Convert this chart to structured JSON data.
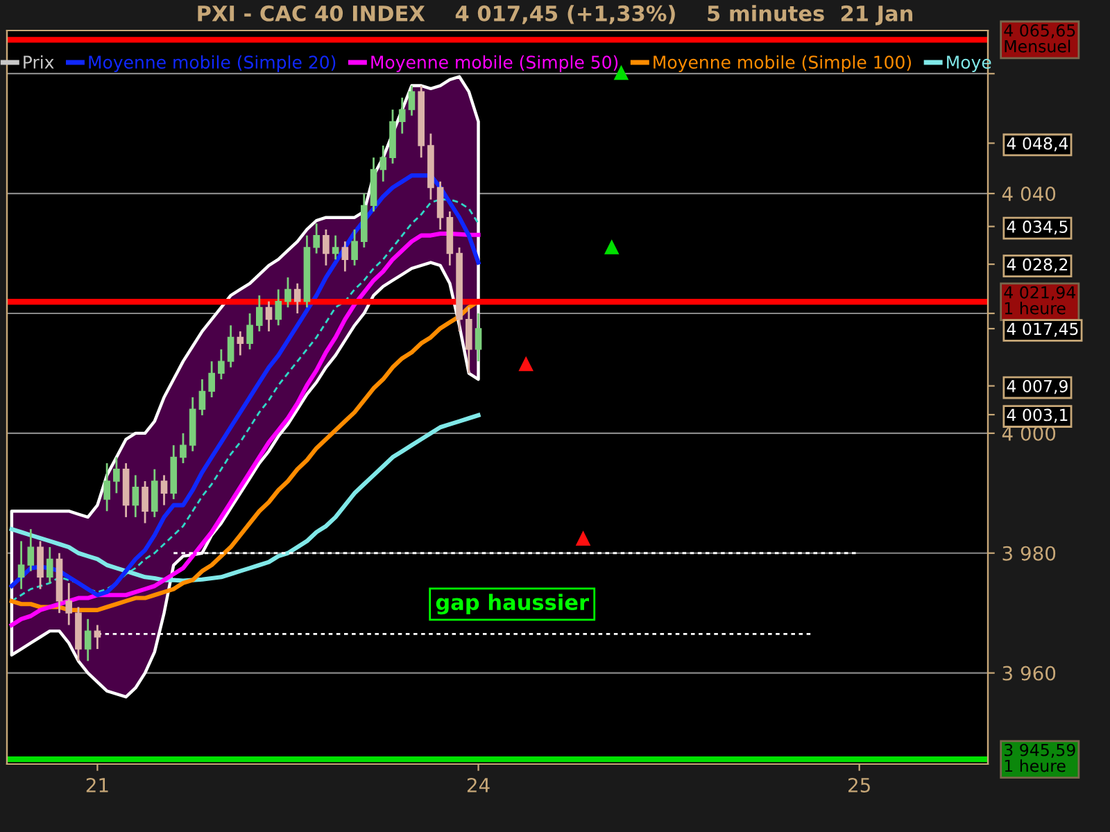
{
  "chart_data": {
    "type": "candlestick",
    "title": "PXI - CAC 40 INDEX    4 017,45 (+1,33%)    5 minutes  21 Jan",
    "categories": [
      null,
      null,
      null,
      null,
      null,
      null,
      null,
      null,
      null,
      "21",
      null,
      null,
      null,
      null,
      null,
      null,
      null,
      null,
      null,
      null,
      null,
      null,
      null,
      null,
      null,
      null,
      null,
      null,
      null,
      null,
      null,
      null,
      null,
      null,
      null,
      null,
      null,
      null,
      null,
      null,
      null,
      null,
      null,
      null,
      null,
      null,
      null,
      null,
      null,
      "24",
      null,
      null,
      null,
      null,
      null,
      null,
      null,
      null,
      null,
      null,
      null,
      null,
      null,
      null,
      null,
      null,
      null,
      null,
      null,
      null,
      null,
      null,
      null,
      null,
      null,
      null,
      null,
      null,
      null,
      null,
      null,
      null,
      null,
      null,
      null,
      null,
      null,
      null,
      null,
      "25",
      null,
      null,
      null,
      null,
      null,
      null,
      null,
      null,
      null,
      null,
      null,
      null,
      null
    ],
    "ylim": [
      3944.8,
      4067.2
    ],
    "yticks": [
      {
        "value": 3960,
        "label": "3 960"
      },
      {
        "value": 3980,
        "label": "3 980"
      },
      {
        "value": 4000,
        "label": "4 000"
      },
      {
        "value": 4020,
        "label": null
      },
      {
        "value": 4040,
        "label": "4 040"
      },
      {
        "value": 4060,
        "label": null
      }
    ],
    "y2lim": [
      3944.8,
      4067.2
    ],
    "y2ticks": [
      {
        "value": 4048.4,
        "label": "4 048,4"
      },
      {
        "value": 4034.5,
        "label": "4 034,5"
      },
      {
        "value": 4028.2,
        "label": "4 028,2"
      },
      {
        "value": 4017.45,
        "label": "4 017,45"
      },
      {
        "value": 4007.9,
        "label": "4 007,9"
      },
      {
        "value": 4003.1,
        "label": "4 003,1"
      }
    ],
    "grid": "y",
    "legend": "top",
    "series": [
      {
        "type": "line",
        "color": "#30d8c8",
        "line_style": "dashed",
        "values": [
          3972,
          3973,
          3974,
          3974.5,
          3975,
          3976,
          3975.5,
          3975,
          3974,
          3973.5,
          3974,
          3975,
          3976.5,
          3977.5,
          3979,
          3980,
          3981.5,
          3983,
          3984.5,
          3987,
          3989.5,
          3991.5,
          3994,
          3996.5,
          3998.5,
          4001,
          4003.5,
          4005.5,
          4008,
          4010,
          4012,
          4014,
          4016,
          4018.5,
          4021,
          4022,
          4024,
          4025.5,
          4027.5,
          4029,
          4031,
          4033,
          4035,
          4036.5,
          4038.5,
          4039,
          4039,
          4038.5,
          4037.5,
          4035,
          null,
          null,
          null,
          null,
          null,
          null,
          null,
          null,
          null,
          null,
          null,
          null,
          null,
          null,
          null,
          null,
          null,
          null,
          null,
          null,
          null,
          null,
          null,
          null,
          null,
          null,
          null,
          null,
          null,
          null,
          null,
          null,
          null,
          null,
          null,
          null,
          null,
          null,
          null,
          null,
          null,
          null,
          null,
          null,
          null,
          null,
          null,
          null,
          null,
          null,
          null,
          null,
          null
        ],
        "upper": [
          3987,
          3987,
          3987,
          3987,
          3987,
          3987,
          3987,
          3986.5,
          3986,
          3988,
          3993,
          3996,
          3999,
          4000,
          4000,
          4002,
          4006,
          4009,
          4012,
          4014.5,
          4017,
          4019,
          4021,
          4023,
          4024,
          4025,
          4026.5,
          4028,
          4029,
          4030.5,
          4032,
          4034,
          4035.5,
          4036,
          4036,
          4036,
          4036,
          4037,
          4043,
          4046,
          4050,
          4054,
          4058,
          4058,
          4057.5,
          4058,
          4059,
          4059.5,
          4057,
          4052,
          null,
          null,
          null,
          null,
          null,
          null,
          null,
          null,
          null,
          null,
          null,
          null,
          null,
          null,
          null,
          null,
          null,
          null,
          null,
          null,
          null,
          null,
          null,
          null,
          null,
          null,
          null,
          null,
          null,
          null,
          null,
          null,
          null,
          null,
          null,
          null,
          null,
          null,
          null,
          null,
          null,
          null,
          null,
          null,
          null,
          null,
          null,
          null,
          null,
          null,
          null,
          null,
          null
        ],
        "lower": [
          3963,
          3964,
          3965,
          3966,
          3967,
          3967,
          3965,
          3962,
          3960,
          3958.5,
          3957,
          3956.5,
          3956,
          3957.5,
          3960,
          3963.5,
          3970,
          3978,
          3979.5,
          3979.7,
          3980,
          3983,
          3985,
          3987.5,
          3990,
          3992.5,
          3995,
          3997,
          3999.5,
          4001.5,
          4004,
          4006.5,
          4008.5,
          4011,
          4013,
          4015.5,
          4018,
          4020,
          4023,
          4024.5,
          4025.5,
          4026.5,
          4027.5,
          4028,
          4028.5,
          4028,
          4025,
          4018,
          4010,
          4009,
          null,
          null,
          null,
          null,
          null,
          null,
          null,
          null,
          null,
          null,
          null,
          null,
          null,
          null,
          null,
          null,
          null,
          null,
          null,
          null,
          null,
          null,
          null,
          null,
          null,
          null,
          null,
          null,
          null,
          null,
          null,
          null,
          null,
          null,
          null,
          null,
          null,
          null,
          null,
          null,
          null,
          null,
          null,
          null,
          null,
          null,
          null,
          null,
          null,
          null,
          null,
          null,
          null
        ]
      },
      {
        "type": "line",
        "name": "Moye",
        "color": "#80e8e8",
        "values": [
          3984,
          3983.5,
          3983,
          3982.5,
          3982,
          3981.5,
          3981,
          3980,
          3979.5,
          3979,
          3978,
          3977.5,
          3977,
          3976.5,
          3976,
          3975.8,
          3975.5,
          3975.5,
          3975.4,
          3975.5,
          3975.6,
          3975.8,
          3976,
          3976.5,
          3977,
          3977.5,
          3978,
          3978.5,
          3979.5,
          3980,
          3981,
          3982,
          3983.5,
          3984.5,
          3986,
          3988,
          3990,
          3991.5,
          3993,
          3994.5,
          3996,
          3997,
          3998,
          3999,
          4000,
          4001,
          4001.5,
          4002,
          4002.5,
          4003,
          null,
          null,
          null,
          null,
          null,
          null,
          null,
          null,
          null,
          null,
          null,
          null,
          null,
          null,
          null,
          null,
          null,
          null,
          null,
          null,
          null,
          null,
          null,
          null,
          null,
          null,
          null,
          null,
          null,
          null,
          null,
          null,
          null,
          null,
          null,
          null,
          null,
          null,
          null,
          null,
          null,
          null,
          null,
          null,
          null,
          null,
          null,
          null,
          null,
          null,
          null,
          null,
          null
        ]
      },
      {
        "type": "line",
        "name": "Moyenne mobile (Simple 100)",
        "color": "#ff8c00",
        "values": [
          3972,
          3971.5,
          3971.5,
          3971,
          3971,
          3971,
          3970.5,
          3970.5,
          3970.5,
          3970.5,
          3971,
          3971.5,
          3972,
          3972.5,
          3972.5,
          3973,
          3973.5,
          3974,
          3975,
          3975.5,
          3977,
          3978,
          3979.5,
          3981,
          3983,
          3985,
          3987,
          3988.5,
          3990.5,
          3992,
          3994,
          3995.5,
          3997.5,
          3999,
          4000.5,
          4002,
          4003.5,
          4005.5,
          4007.5,
          4009,
          4011,
          4012.5,
          4013.5,
          4015,
          4016,
          4017.5,
          4018.5,
          4019.5,
          4021,
          4022,
          null,
          null,
          null,
          null,
          null,
          null,
          null,
          null,
          null,
          null,
          null,
          null,
          null,
          null,
          null,
          null,
          null,
          null,
          null,
          null,
          null,
          null,
          null,
          null,
          null,
          null,
          null,
          null,
          null,
          null,
          null,
          null,
          null,
          null,
          null,
          null,
          null,
          null,
          null,
          null,
          null,
          null,
          null,
          null,
          null,
          null,
          null,
          null,
          null,
          null,
          null,
          null,
          null
        ]
      },
      {
        "type": "line",
        "name": "Moyenne mobile (Simple 50)",
        "color": "#ff00ff",
        "values": [
          3968,
          3969,
          3969.5,
          3970.5,
          3971,
          3971.5,
          3972,
          3972.5,
          3972.5,
          3973,
          3973,
          3973,
          3973,
          3973.5,
          3974,
          3974.5,
          3975.5,
          3976.5,
          3977.5,
          3979.5,
          3981.5,
          3983.5,
          3986,
          3988.5,
          3991,
          3993.5,
          3996,
          3998.5,
          4000.5,
          4002.5,
          4005,
          4008,
          4010.5,
          4013.5,
          4016,
          4019,
          4021.5,
          4023.5,
          4025.5,
          4027,
          4029,
          4030.5,
          4032,
          4033,
          4033,
          4033.3,
          4033.3,
          4033.2,
          4033.1,
          4033.1,
          null,
          null,
          null,
          null,
          null,
          null,
          null,
          null,
          null,
          null,
          null,
          null,
          null,
          null,
          null,
          null,
          null,
          null,
          null,
          null,
          null,
          null,
          null,
          null,
          null,
          null,
          null,
          null,
          null,
          null,
          null,
          null,
          null,
          null,
          null,
          null,
          null,
          null,
          null,
          null,
          null,
          null,
          null,
          null,
          null,
          null,
          null,
          null,
          null,
          null,
          null,
          null,
          null
        ]
      },
      {
        "type": "line",
        "name": "Moyenne mobile (Simple 20)",
        "color": "#1028ff",
        "values": [
          3974.5,
          3976,
          3977.5,
          3977.7,
          3977.5,
          3977,
          3976,
          3975,
          3974,
          3973,
          3973.5,
          3975,
          3977,
          3979,
          3980.5,
          3983,
          3986,
          3988,
          3988,
          3990.5,
          3993.5,
          3996,
          3998.5,
          4001,
          4003.5,
          4006,
          4008.5,
          4011,
          4013,
          4015.5,
          4018,
          4020.5,
          4023,
          4026,
          4028.5,
          4031,
          4033.5,
          4035.5,
          4037.5,
          4039.5,
          4041,
          4042,
          4043,
          4043,
          4043,
          4041,
          4038.5,
          4036,
          4033,
          4028.5,
          null,
          null,
          null,
          null,
          null,
          null,
          null,
          null,
          null,
          null,
          null,
          null,
          null,
          null,
          null,
          null,
          null,
          null,
          null,
          null,
          null,
          null,
          null,
          null,
          null,
          null,
          null,
          null,
          null,
          null,
          null,
          null,
          null,
          null,
          null,
          null,
          null,
          null,
          null,
          null,
          null,
          null,
          null,
          null,
          null,
          null,
          null,
          null,
          null,
          null,
          null,
          null,
          null
        ]
      },
      {
        "type": "line",
        "color": "#ffffff",
        "line_style": "dotted",
        "values": [
          null,
          null,
          null,
          null,
          null,
          null,
          null,
          null,
          null,
          null,
          null,
          null,
          null,
          null,
          null,
          null,
          null,
          3980,
          3980,
          3980,
          3980,
          3980,
          3980,
          3980,
          3980,
          3980,
          3980,
          3980,
          3980,
          3980,
          3980,
          3980,
          3980,
          3980,
          3980,
          3980,
          3980,
          3980,
          3980,
          3980,
          3980,
          3980,
          3980,
          3980,
          3980,
          3980,
          3980,
          3980,
          3980,
          3980,
          3980,
          3980,
          3980,
          3980,
          3980,
          3980,
          3980,
          3980,
          3980,
          3980,
          3980,
          3980,
          3980,
          3980,
          3980,
          3980,
          3980,
          3980,
          3980,
          3980,
          3980,
          3980,
          3980,
          3980,
          3980,
          3980,
          3980,
          3980,
          3980,
          3980,
          3980,
          3980,
          3980,
          3980,
          3980,
          3980,
          3980,
          3980,
          3980,
          3980,
          null,
          null,
          null,
          null,
          null,
          null,
          null,
          null,
          null,
          null,
          null,
          null,
          null
        ]
      },
      {
        "type": "line",
        "color": "#ffffff",
        "line_style": "dotted",
        "values": [
          null,
          null,
          null,
          null,
          null,
          null,
          null,
          null,
          null,
          3966.5,
          3966.5,
          3966.5,
          3966.5,
          3966.5,
          3966.5,
          3966.5,
          3966.5,
          3966.5,
          3966.5,
          3966.5,
          3966.5,
          3966.5,
          3966.5,
          3966.5,
          3966.5,
          3966.5,
          3966.5,
          3966.5,
          3966.5,
          3966.5,
          3966.5,
          3966.5,
          3966.5,
          3966.5,
          3966.5,
          3966.5,
          3966.5,
          3966.5,
          3966.5,
          3966.5,
          3966.5,
          3966.5,
          3966.5,
          3966.5,
          3966.5,
          3966.5,
          3966.5,
          3966.5,
          3966.5,
          3966.5,
          3966.5,
          3966.5,
          3966.5,
          3966.5,
          3966.5,
          3966.5,
          3966.5,
          3966.5,
          3966.5,
          3966.5,
          3966.5,
          3966.5,
          3966.5,
          3966.5,
          3966.5,
          3966.5,
          3966.5,
          3966.5,
          3966.5,
          3966.5,
          3966.5,
          3966.5,
          3966.5,
          3966.5,
          3966.5,
          3966.5,
          3966.5,
          3966.5,
          3966.5,
          3966.5,
          3966.5,
          3966.5,
          3966.5,
          3966.5,
          3966.5,
          null,
          null,
          null,
          null,
          null,
          null,
          null,
          null,
          null,
          null,
          null,
          null,
          null,
          null,
          null,
          null,
          null,
          null
        ]
      },
      {
        "type": "scatter",
        "color": "#00e000",
        "marker": "triangle",
        "values": [
          null,
          null,
          null,
          null,
          null,
          null,
          null,
          null,
          null,
          null,
          null,
          null,
          null,
          null,
          null,
          null,
          null,
          null,
          null,
          null,
          null,
          null,
          null,
          null,
          null,
          null,
          null,
          null,
          null,
          null,
          null,
          null,
          null,
          null,
          null,
          null,
          null,
          null,
          null,
          null,
          null,
          null,
          null,
          null,
          null,
          null,
          null,
          null,
          null,
          null,
          null,
          null,
          null,
          null,
          null,
          null,
          null,
          null,
          null,
          null,
          null,
          null,
          null,
          4031.1,
          4060.2,
          null,
          null,
          null,
          null,
          null,
          null,
          null,
          null,
          null,
          null,
          null,
          null,
          null,
          null,
          null,
          null,
          null,
          null,
          null,
          null,
          null,
          null,
          null,
          null,
          null,
          null,
          null,
          null,
          null,
          null,
          null,
          null,
          null,
          null,
          null,
          null,
          null,
          null
        ]
      },
      {
        "type": "scatter",
        "color": "#ff1010",
        "marker": "triangle",
        "values": [
          null,
          null,
          null,
          null,
          null,
          null,
          null,
          null,
          null,
          null,
          null,
          null,
          null,
          null,
          null,
          null,
          null,
          null,
          null,
          null,
          null,
          null,
          null,
          null,
          null,
          null,
          null,
          null,
          null,
          null,
          null,
          null,
          null,
          null,
          null,
          null,
          null,
          null,
          null,
          null,
          null,
          null,
          null,
          null,
          null,
          null,
          null,
          null,
          null,
          null,
          null,
          null,
          null,
          null,
          4011.6,
          null,
          null,
          null,
          null,
          null,
          3982.5,
          null,
          null,
          null,
          null,
          null,
          null,
          null,
          null,
          null,
          null,
          null,
          null,
          null,
          null,
          null,
          null,
          null,
          null,
          null,
          null,
          null,
          null,
          null,
          null,
          null,
          null,
          null,
          null,
          null,
          null,
          null,
          null,
          null,
          null,
          null,
          null,
          null,
          null,
          null,
          null,
          null,
          null
        ]
      },
      {
        "name": "Prix",
        "color": "#c8c8c8",
        "ohlc": [
          null,
          [
            3976,
            3982,
            3974,
            3978
          ],
          [
            3978,
            3984,
            3977,
            3981
          ],
          [
            3981,
            3982,
            3974,
            3976
          ],
          [
            3976,
            3981,
            3975,
            3979
          ],
          [
            3979,
            3980,
            3970,
            3972
          ],
          [
            3972,
            3975,
            3968,
            3970
          ],
          [
            3970,
            3971,
            3962,
            3964
          ],
          [
            3964,
            3969,
            3962,
            3967
          ],
          [
            3967,
            3968,
            3964,
            3966
          ],
          [
            3989,
            3995,
            3987,
            3992
          ],
          [
            3992,
            3996,
            3990,
            3994
          ],
          [
            3994,
            3995,
            3986,
            3988
          ],
          [
            3988,
            3993,
            3986,
            3991
          ],
          [
            3991,
            3992,
            3985,
            3987
          ],
          [
            3987,
            3994,
            3986,
            3992
          ],
          [
            3992,
            3993,
            3988,
            3990
          ],
          [
            3990,
            3998,
            3989,
            3996
          ],
          [
            3996,
            4000,
            3995,
            3998
          ],
          [
            3998,
            4006,
            3997,
            4004
          ],
          [
            4004,
            4009,
            4003,
            4007
          ],
          [
            4007,
            4012,
            4006,
            4010
          ],
          [
            4010,
            4014,
            4009,
            4012
          ],
          [
            4012,
            4018,
            4011,
            4016
          ],
          [
            4016,
            4017,
            4013,
            4015
          ],
          [
            4015,
            4020,
            4014,
            4018
          ],
          [
            4018,
            4023,
            4017,
            4021
          ],
          [
            4021,
            4022,
            4017,
            4019
          ],
          [
            4019,
            4024,
            4018,
            4022
          ],
          [
            4022,
            4026,
            4021,
            4024
          ],
          [
            4024,
            4025,
            4020,
            4022
          ],
          [
            4022,
            4033,
            4021,
            4031
          ],
          [
            4031,
            4035,
            4030,
            4033
          ],
          [
            4033,
            4034,
            4028,
            4030
          ],
          [
            4030,
            4033,
            4029,
            4031
          ],
          [
            4031,
            4032,
            4027,
            4029
          ],
          [
            4029,
            4034,
            4028,
            4032
          ],
          [
            4032,
            4040,
            4031,
            4038
          ],
          [
            4038,
            4046,
            4037,
            4044
          ],
          [
            4044,
            4048,
            4042,
            4046
          ],
          [
            4046,
            4054,
            4045,
            4052
          ],
          [
            4052,
            4056,
            4050,
            4054
          ],
          [
            4054,
            4058,
            4053,
            4057
          ],
          [
            4057,
            4058,
            4046,
            4048
          ],
          [
            4048,
            4050,
            4039,
            4041
          ],
          [
            4041,
            4042,
            4034,
            4036
          ],
          [
            4036,
            4037,
            4028,
            4030
          ],
          [
            4030,
            4031,
            4017,
            4019
          ],
          [
            4019,
            4021,
            4010,
            4014
          ],
          [
            4014,
            4020,
            4012,
            4017.45
          ],
          null,
          null,
          null,
          null,
          null,
          null,
          null,
          null,
          null,
          null,
          null,
          null,
          null,
          null,
          null,
          null,
          null,
          null,
          null,
          null,
          null,
          null,
          null,
          null,
          null,
          null,
          null,
          null,
          null,
          null,
          null,
          null,
          null,
          null,
          null,
          null,
          null,
          null,
          null,
          null,
          null,
          null,
          null,
          null,
          null,
          null,
          null,
          null,
          null,
          null,
          null,
          null,
          null
        ],
        "colors": [
          null,
          "#7ccf7c",
          "#7ccf7c",
          "#dcb4aa",
          "#7ccf7c",
          "#dcb4aa",
          "#dcb4aa",
          "#dcb4aa",
          "#7ccf7c",
          "#dcb4aa",
          "#7ccf7c",
          "#7ccf7c",
          "#dcb4aa",
          "#7ccf7c",
          "#dcb4aa",
          "#7ccf7c",
          "#dcb4aa",
          "#7ccf7c",
          "#7ccf7c",
          "#7ccf7c",
          "#7ccf7c",
          "#7ccf7c",
          "#7ccf7c",
          "#7ccf7c",
          "#dcb4aa",
          "#7ccf7c",
          "#7ccf7c",
          "#dcb4aa",
          "#7ccf7c",
          "#7ccf7c",
          "#dcb4aa",
          "#7ccf7c",
          "#7ccf7c",
          "#dcb4aa",
          "#7ccf7c",
          "#dcb4aa",
          "#7ccf7c",
          "#7ccf7c",
          "#7ccf7c",
          "#7ccf7c",
          "#7ccf7c",
          "#7ccf7c",
          "#7ccf7c",
          "#dcb4aa",
          "#dcb4aa",
          "#dcb4aa",
          "#dcb4aa",
          "#dcb4aa",
          "#dcb4aa",
          "#7ccf7c",
          null,
          null,
          null,
          null,
          null,
          null,
          null,
          null,
          null,
          null,
          null,
          null,
          null,
          null,
          null,
          null,
          null,
          null,
          null,
          null,
          null,
          null,
          null,
          null,
          null,
          null,
          null,
          null,
          null,
          null,
          null,
          null,
          null,
          null,
          null,
          null,
          null,
          null,
          null,
          null,
          null,
          null,
          null,
          null,
          null,
          null,
          null,
          null,
          null,
          null,
          null,
          null,
          null
        ]
      }
    ],
    "ref_lines": [
      {
        "axis": "y",
        "value": 4065.65,
        "label": "4 065,65\nMensuel",
        "color": "#ff0000"
      },
      {
        "axis": "y",
        "value": 4021.94,
        "label": "4 021,94\n1 heure",
        "color": "#ff0000"
      },
      {
        "axis": "y",
        "value": 3945.59,
        "label": "3 945,59\n1 heure",
        "color": "#00e000"
      }
    ],
    "annotations": [
      "gap haussier"
    ]
  }
}
